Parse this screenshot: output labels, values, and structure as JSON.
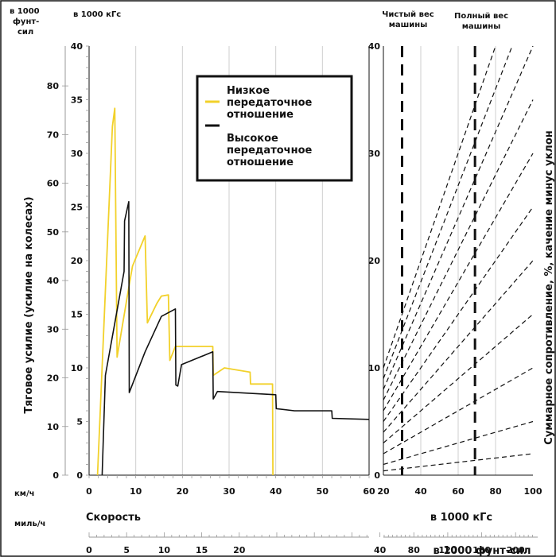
{
  "chart_data": {
    "type": "line",
    "units": {
      "left_outer": [
        "в 1000",
        "фунт-",
        "сил"
      ],
      "left_inner": "в 1000 кГс",
      "x_kmh": "км/ч",
      "x_mph": "миль/ч",
      "right_x_kgf": "в 1000 кГс",
      "right_x_lbf": "в 1000 фунт-сил"
    },
    "ylabel": "Тяговое усилие (усилие на колесах)",
    "xlabel": "Скорость",
    "right_ylabel": "Суммарное сопротивление, %, качение минус уклон",
    "headers": {
      "net_weight": [
        "Чистый вес",
        "машины"
      ],
      "gross_weight": [
        "Полный вес",
        "машины"
      ]
    },
    "y_kgf_ticks": [
      "0",
      "5",
      "10",
      "15",
      "20",
      "25",
      "30",
      "35",
      "40"
    ],
    "y_lbf_ticks": [
      "0",
      "10",
      "20",
      "30",
      "40",
      "50",
      "60",
      "70",
      "80"
    ],
    "x_kmh_ticks": [
      "0",
      "10",
      "20",
      "30",
      "40",
      "50",
      "60"
    ],
    "x_mph_ticks": [
      "0",
      "5",
      "10",
      "15",
      "20"
    ],
    "right_y_ticks": [
      "0",
      "10",
      "20",
      "30",
      "40"
    ],
    "right_x_kgf_ticks": [
      "20",
      "40",
      "60",
      "80",
      "100"
    ],
    "right_x_lbf_ticks": [
      "40",
      "80",
      "120",
      "160",
      "200"
    ],
    "xlim": [
      0,
      60
    ],
    "ylim": [
      0,
      40
    ],
    "right_xlim": [
      20,
      100
    ],
    "right_ylim": [
      0,
      40
    ],
    "legend": {
      "position": "top-right",
      "low_label": [
        "Низкое",
        "передаточное",
        "отношение"
      ],
      "high_label": [
        "Высокое",
        "передаточное",
        "отношение"
      ]
    },
    "series": [
      {
        "color": "#f2d12a",
        "points": [
          [
            1.8,
            0
          ],
          [
            5.0,
            32.5
          ],
          [
            5.5,
            34.2
          ],
          [
            6.0,
            11.0
          ],
          [
            8.5,
            17.5
          ],
          [
            9.3,
            19.5
          ],
          [
            12.0,
            22.3
          ],
          [
            12.5,
            14.2
          ],
          [
            14.5,
            16.0
          ],
          [
            15.5,
            16.7
          ],
          [
            17.0,
            16.8
          ],
          [
            17.3,
            10.7
          ],
          [
            18.5,
            12.0
          ],
          [
            26.5,
            12.0
          ],
          [
            26.6,
            9.3
          ],
          [
            29.0,
            10.0
          ],
          [
            34.5,
            9.6
          ],
          [
            34.6,
            8.5
          ],
          [
            39.3,
            8.5
          ],
          [
            39.4,
            0
          ]
        ]
      },
      {
        "color": "#111111",
        "points": [
          [
            2.8,
            0
          ],
          [
            3.5,
            9.3
          ],
          [
            7.5,
            19.0
          ],
          [
            7.6,
            23.7
          ],
          [
            8.5,
            25.5
          ],
          [
            8.6,
            7.7
          ],
          [
            12.0,
            11.5
          ],
          [
            15.5,
            14.8
          ],
          [
            18.5,
            15.5
          ],
          [
            18.6,
            8.4
          ],
          [
            19.0,
            8.3
          ],
          [
            19.8,
            10.3
          ],
          [
            26.5,
            11.5
          ],
          [
            26.6,
            7.1
          ],
          [
            27.5,
            7.8
          ],
          [
            40.0,
            7.5
          ],
          [
            40.1,
            6.2
          ],
          [
            44.0,
            6.0
          ],
          [
            52.0,
            6.0
          ],
          [
            52.1,
            5.3
          ],
          [
            60.0,
            5.2
          ]
        ]
      }
    ],
    "resistance_lines": [
      {
        "percent": 2,
        "y_at_20": 0.4,
        "y_at_100": 2
      },
      {
        "percent": 5,
        "y_at_20": 1.0,
        "y_at_100": 5
      },
      {
        "percent": 10,
        "y_at_20": 2.0,
        "y_at_100": 10
      },
      {
        "percent": 15,
        "y_at_20": 3.0,
        "y_at_100": 15
      },
      {
        "percent": 20,
        "y_at_20": 4.0,
        "y_at_100": 20
      },
      {
        "percent": 25,
        "y_at_20": 5.0,
        "y_at_100": 25
      },
      {
        "percent": 30,
        "y_at_20": 6.0,
        "y_at_100": 30
      },
      {
        "percent": 35,
        "y_at_20": 7.0,
        "y_at_100": 35
      },
      {
        "percent": 40,
        "y_at_20": 8.0,
        "y_at_100": 40
      },
      {
        "percent": 45,
        "y_at_20": 9.0,
        "y_at_100": 45
      },
      {
        "percent": 50,
        "y_at_20": 10.0,
        "y_at_100": 50
      }
    ],
    "weight_lines": {
      "net_weight_kgf": 30,
      "gross_weight_kgf": 69
    }
  }
}
